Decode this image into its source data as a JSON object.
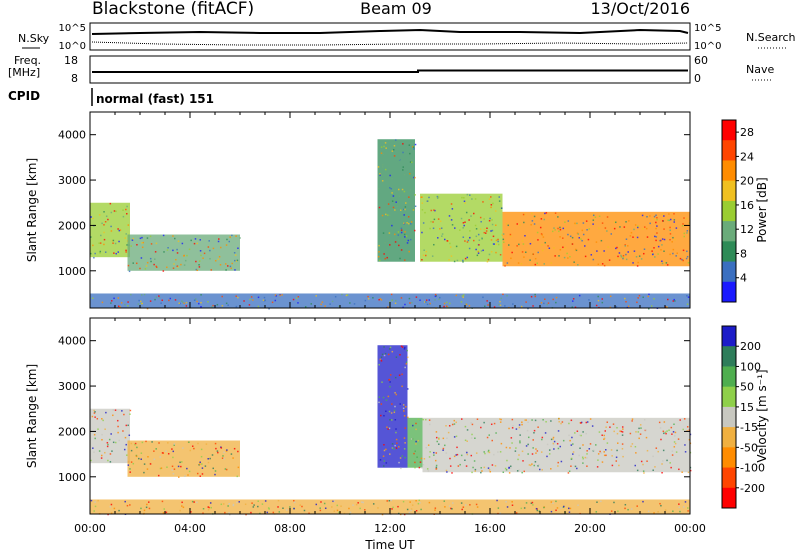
{
  "header": {
    "station": "Blackstone (fitACF)",
    "beam": "Beam 09",
    "date": "13/Oct/2016"
  },
  "status_panels": {
    "noise": {
      "left_label": "N.Sky",
      "right_label": "N.Search",
      "left_ticks": [
        "10^5",
        "10^0"
      ],
      "right_ticks": [
        "10^5",
        "10^0"
      ]
    },
    "frequency": {
      "left_label_line1": "Freq.",
      "left_label_line2": "[MHz]",
      "right_label": "Nave",
      "left_ticks": [
        "18",
        "8"
      ],
      "right_ticks": [
        "60",
        "0"
      ]
    },
    "cpid": {
      "label": "CPID",
      "program": "normal (fast) 151"
    }
  },
  "colors": {
    "power_scale": [
      "#1a1aff",
      "#3a6fc0",
      "#2e8b57",
      "#6aab7a",
      "#9acd32",
      "#f0c020",
      "#ff8c00",
      "#ff4500",
      "#ff0000"
    ],
    "velocity_scale": [
      "#1c1cc8",
      "#2e7d5a",
      "#4fae4f",
      "#8fd04a",
      "#c8c8c0",
      "#f0b040",
      "#ff8c00",
      "#ff4500",
      "#ff0000"
    ]
  },
  "chart_data": [
    {
      "type": "heatmap",
      "panel": "power",
      "ylabel": "Slant Range [km]",
      "ylim": [
        180,
        4500
      ],
      "yticks": [
        "1000",
        "2000",
        "3000",
        "4000"
      ],
      "xlim": [
        "00:00",
        "24:00"
      ],
      "colorbar_label": "Power [dB]",
      "colorbar_ticks": [
        "4",
        "8",
        "12",
        "16",
        "20",
        "24",
        "28"
      ],
      "colorbar_range": [
        0,
        30
      ],
      "regions": [
        {
          "t_start": 0.0,
          "t_end": 1.6,
          "range_start": 1300,
          "range_end": 2500,
          "value": 14
        },
        {
          "t_start": 1.5,
          "t_end": 6.0,
          "range_start": 1000,
          "range_end": 1800,
          "value": 10
        },
        {
          "t_start": 11.5,
          "t_end": 13.0,
          "range_start": 1200,
          "range_end": 3900,
          "value": 9
        },
        {
          "t_start": 13.2,
          "t_end": 16.5,
          "range_start": 1200,
          "range_end": 2700,
          "value": 15
        },
        {
          "t_start": 16.5,
          "t_end": 24.0,
          "range_start": 1100,
          "range_end": 2300,
          "value": 22
        },
        {
          "t_start": 0.0,
          "t_end": 24.0,
          "range_start": 180,
          "range_end": 500,
          "value": 6
        }
      ]
    },
    {
      "type": "heatmap",
      "panel": "velocity",
      "ylabel": "Slant Range [km]",
      "ylim": [
        180,
        4500
      ],
      "yticks": [
        "1000",
        "2000",
        "3000",
        "4000"
      ],
      "xlim": [
        "00:00",
        "24:00"
      ],
      "xticks": [
        "00:00",
        "04:00",
        "08:00",
        "12:00",
        "16:00",
        "20:00",
        "00:00"
      ],
      "xlabel": "Time UT",
      "colorbar_label": "Velocity [m s⁻¹]",
      "colorbar_ticks": [
        "200",
        "100",
        "50",
        "15",
        "-15",
        "-50",
        "-100",
        "-200"
      ],
      "regions": [
        {
          "t_start": 0.0,
          "t_end": 1.6,
          "range_start": 1300,
          "range_end": 2500,
          "value": -15
        },
        {
          "t_start": 1.5,
          "t_end": 6.0,
          "range_start": 1000,
          "range_end": 1800,
          "value": -50
        },
        {
          "t_start": 11.5,
          "t_end": 12.7,
          "range_start": 1200,
          "range_end": 3900,
          "value": 200
        },
        {
          "t_start": 12.7,
          "t_end": 13.3,
          "range_start": 1200,
          "range_end": 2300,
          "value": 50
        },
        {
          "t_start": 13.3,
          "t_end": 24.0,
          "range_start": 1100,
          "range_end": 2300,
          "value": 0
        },
        {
          "t_start": 0.0,
          "t_end": 24.0,
          "range_start": 180,
          "range_end": 500,
          "value": -50
        }
      ]
    }
  ]
}
